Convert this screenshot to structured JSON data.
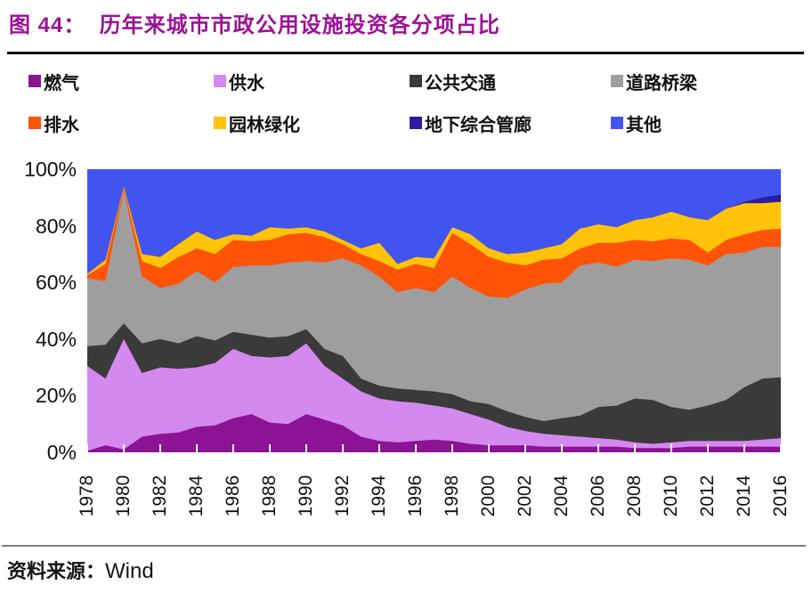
{
  "header": {
    "title": "图 44：  历年来城市市政公用设施投资各分项占比",
    "title_color": "#9C1295"
  },
  "chart_data": {
    "type": "area",
    "stacked": true,
    "percent_stack": true,
    "grid": false,
    "legend_position": "top",
    "ylim": [
      0,
      100
    ],
    "y_tick_labels": [
      "100%",
      "80%",
      "60%",
      "40%",
      "20%",
      "0%"
    ],
    "x": [
      1978,
      1979,
      1980,
      1981,
      1982,
      1983,
      1984,
      1985,
      1986,
      1987,
      1988,
      1989,
      1990,
      1991,
      1992,
      1993,
      1994,
      1995,
      1996,
      1997,
      1998,
      1999,
      2000,
      2001,
      2002,
      2003,
      2004,
      2005,
      2006,
      2007,
      2008,
      2009,
      2010,
      2011,
      2012,
      2013,
      2014,
      2015,
      2016
    ],
    "x_tick_labels": [
      "1978",
      "1980",
      "1982",
      "1984",
      "1986",
      "1988",
      "1990",
      "1992",
      "1994",
      "1996",
      "1998",
      "2000",
      "2002",
      "2004",
      "2006",
      "2008",
      "2010",
      "2012",
      "2014",
      "2016"
    ],
    "unit": "%",
    "series": [
      {
        "name": "燃气",
        "color": "#8C1394",
        "values": [
          0.5,
          2.5,
          1,
          5.5,
          6.5,
          7,
          9,
          9.5,
          12,
          13.5,
          10.5,
          10,
          13.5,
          11.5,
          9.5,
          5.5,
          4,
          3.5,
          4,
          4.5,
          4,
          3,
          2.5,
          2.5,
          2.5,
          2,
          2,
          2,
          2,
          2,
          1.5,
          1.5,
          1.5,
          2,
          2,
          2,
          2,
          2,
          2
        ]
      },
      {
        "name": "供水",
        "color": "#D489EF",
        "values": [
          30,
          23.5,
          39,
          22.5,
          23.5,
          22.5,
          21,
          22,
          24.5,
          20.5,
          23,
          24,
          25,
          19,
          16.5,
          16,
          15,
          14.5,
          13.5,
          12,
          11.5,
          10.5,
          9,
          6.5,
          5,
          4.5,
          4,
          3.5,
          3,
          2.5,
          2,
          1.5,
          2,
          2,
          2,
          2,
          2,
          2.5,
          3
        ]
      },
      {
        "name": "公共交通",
        "color": "#3A3A3A",
        "values": [
          7,
          12,
          5.5,
          10.5,
          10,
          9,
          11,
          8,
          6,
          7.5,
          7,
          7,
          5,
          6,
          8,
          4.5,
          4.5,
          4.5,
          4.5,
          5,
          5,
          4.5,
          5.5,
          5.5,
          5,
          4.5,
          6,
          7.5,
          11,
          12,
          15.5,
          15.5,
          12.5,
          11,
          12.5,
          14.5,
          19,
          21.5,
          21.5
        ]
      },
      {
        "name": "道路桥梁",
        "color": "#9E9E9E",
        "values": [
          24,
          22.5,
          47,
          23.5,
          18,
          21,
          23,
          20.5,
          23,
          24.5,
          25.5,
          26,
          24,
          30.5,
          34.5,
          40,
          38.5,
          34,
          36,
          35,
          41.5,
          40,
          38,
          40,
          45,
          48.5,
          48,
          53,
          51,
          49,
          49,
          49,
          52.5,
          53,
          49.5,
          51.5,
          47.5,
          46.5,
          46
        ]
      },
      {
        "name": "排水",
        "color": "#FF5308",
        "values": [
          1,
          6,
          1,
          5.5,
          7,
          9.5,
          8,
          10,
          9.5,
          8.5,
          9,
          10,
          10,
          9,
          5,
          4,
          5.5,
          8,
          8.5,
          8.5,
          15.5,
          15.5,
          14,
          12.5,
          8.5,
          8.5,
          8.5,
          6,
          7,
          8.5,
          7,
          7,
          7,
          7,
          4.5,
          5,
          6.5,
          6,
          6.5
        ]
      },
      {
        "name": "园林绿化",
        "color": "#FFC40A",
        "values": [
          0.5,
          1.5,
          0.5,
          2.5,
          4,
          4.5,
          6,
          5,
          2,
          2,
          4.5,
          2,
          2,
          2,
          1.5,
          2,
          6.5,
          2,
          2.5,
          3.5,
          2,
          3.5,
          3,
          3,
          4.5,
          4,
          5,
          7,
          6.5,
          5.5,
          7,
          8.5,
          9.5,
          8,
          11.5,
          11,
          11,
          9.5,
          9.5
        ]
      },
      {
        "name": "地下综合管廊",
        "color": "#2B1E9E",
        "values": [
          0,
          0,
          0,
          0,
          0,
          0,
          0,
          0,
          0,
          0,
          0,
          0,
          0,
          0,
          0,
          0,
          0,
          0,
          0,
          0,
          0,
          0,
          0,
          0,
          0,
          0,
          0,
          0,
          0,
          0,
          0,
          0,
          0,
          0,
          0,
          0,
          0.5,
          2,
          2.5
        ]
      },
      {
        "name": "其他",
        "color": "#4254F0",
        "values": [
          37,
          32,
          6,
          30,
          31,
          26.5,
          22,
          25,
          23,
          23.5,
          20.5,
          21,
          20.5,
          22,
          25,
          28,
          26,
          33.5,
          31,
          31.5,
          20.5,
          23,
          28,
          30,
          29.5,
          28,
          26.5,
          21,
          19.5,
          20.5,
          18,
          17,
          15,
          17,
          18,
          14,
          11.5,
          10,
          9
        ]
      }
    ]
  },
  "source": {
    "label": "资料来源：",
    "value": "Wind"
  }
}
